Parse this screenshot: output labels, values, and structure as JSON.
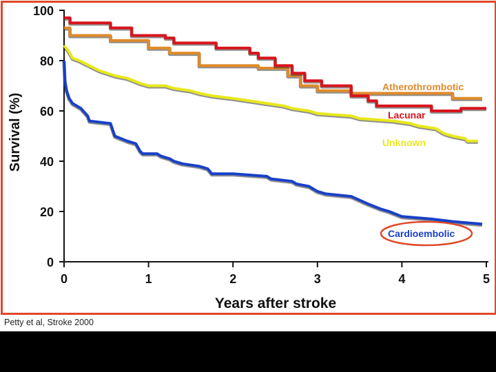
{
  "caption": "Petty et al, Stroke 2000",
  "chart_data": {
    "type": "line",
    "title": "",
    "xlabel": "Years after stroke",
    "ylabel": "Survival (%)",
    "xlim": [
      0,
      5
    ],
    "ylim": [
      0,
      100
    ],
    "xticks": [
      "0",
      "1",
      "2",
      "3",
      "4",
      "5"
    ],
    "yticks": [
      "0",
      "20",
      "40",
      "60",
      "80",
      "100"
    ],
    "grid": false,
    "series": [
      {
        "name": "Atherothrombotic",
        "color": "#e08a2a",
        "x": [
          0,
          0.07,
          0.07,
          0.55,
          0.55,
          1.0,
          1.0,
          1.25,
          1.25,
          1.6,
          1.6,
          2.3,
          2.3,
          2.65,
          2.65,
          2.8,
          2.8,
          3.0,
          3.0,
          3.4,
          3.4,
          4.6,
          4.6,
          4.95
        ],
        "y": [
          93,
          93,
          90,
          90,
          88,
          88,
          85,
          85,
          83,
          83,
          78,
          78,
          77,
          77,
          74,
          74,
          70,
          70,
          68,
          68,
          67,
          67,
          65,
          65
        ]
      },
      {
        "name": "Lacunar",
        "color": "#d8141c",
        "x": [
          0,
          0.07,
          0.07,
          0.55,
          0.55,
          0.8,
          0.8,
          1.2,
          1.2,
          1.3,
          1.3,
          1.8,
          1.8,
          2.2,
          2.2,
          2.3,
          2.3,
          2.5,
          2.5,
          2.7,
          2.7,
          2.85,
          2.85,
          3.05,
          3.05,
          3.4,
          3.4,
          3.6,
          3.6,
          3.7,
          3.7,
          4.35,
          4.35,
          4.7,
          4.7,
          5.0
        ],
        "y": [
          97,
          97,
          95,
          95,
          93,
          93,
          90,
          90,
          89,
          89,
          87,
          87,
          85,
          85,
          83,
          83,
          81,
          81,
          78,
          78,
          75,
          75,
          72,
          72,
          70,
          70,
          66,
          66,
          64,
          64,
          62,
          62,
          60,
          60,
          61,
          61
        ]
      },
      {
        "name": "Unknown",
        "color": "#e8e81c",
        "x": [
          0,
          0.05,
          0.1,
          0.18,
          0.3,
          0.42,
          0.6,
          0.75,
          0.9,
          1.0,
          1.2,
          1.3,
          1.5,
          1.6,
          1.75,
          2.0,
          2.2,
          2.4,
          2.6,
          2.7,
          2.9,
          3.0,
          3.4,
          3.5,
          3.9,
          4.1,
          4.2,
          4.4,
          4.5,
          4.6,
          4.75,
          4.78,
          4.9
        ],
        "y": [
          86,
          84,
          81,
          80,
          78,
          76,
          74,
          73,
          71,
          70,
          70,
          69,
          68,
          67,
          66,
          65,
          64,
          63,
          62,
          61,
          60,
          59,
          58,
          57,
          56,
          55,
          54,
          53,
          51,
          50,
          49,
          48,
          48
        ]
      },
      {
        "name": "Cardioembolic",
        "color": "#1840c8",
        "x": [
          0,
          0.01,
          0.03,
          0.06,
          0.1,
          0.15,
          0.2,
          0.28,
          0.3,
          0.55,
          0.58,
          0.6,
          0.75,
          0.85,
          0.9,
          0.93,
          1.1,
          1.15,
          1.25,
          1.3,
          1.4,
          1.6,
          1.7,
          1.75,
          2.0,
          2.4,
          2.45,
          2.7,
          2.75,
          2.9,
          3.0,
          3.1,
          3.4,
          3.6,
          3.75,
          3.85,
          4.0,
          4.35,
          4.6,
          4.95
        ],
        "y": [
          80,
          72,
          68,
          65,
          63,
          62,
          61,
          58,
          56,
          55,
          52,
          50,
          48,
          47,
          44,
          43,
          43,
          42,
          41,
          40,
          39,
          38,
          37,
          35,
          35,
          34,
          33,
          32,
          31,
          30,
          28,
          27,
          26,
          23,
          21,
          20,
          18,
          17,
          16,
          15
        ]
      }
    ],
    "annotations": [
      {
        "text": "Atherothrombotic",
        "series": "Atherothrombotic"
      },
      {
        "text": "Lacunar",
        "series": "Lacunar"
      },
      {
        "text": "Unknown",
        "series": "Unknown"
      },
      {
        "text": "Cardioembolic",
        "series": "Cardioembolic",
        "highlight": "circled",
        "highlight_color": "#e0482a"
      }
    ]
  }
}
